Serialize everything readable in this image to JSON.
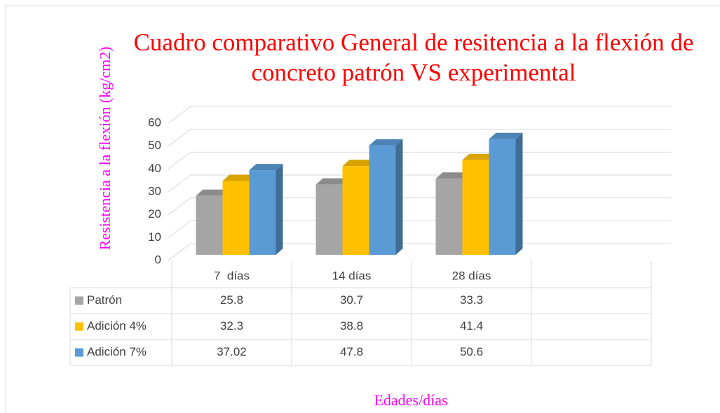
{
  "chart_data": {
    "type": "bar3d",
    "title": "Cuadro comparativo General de resitencia a la flexión de concreto patrón VS experimental",
    "y_axis_label": "Resistencia a la flexión (kg/cm2)",
    "x_axis_label": "Edades/días",
    "categories": [
      "7  días",
      "14 días",
      "28 días"
    ],
    "series": [
      {
        "name": "Patrón",
        "color": "#a5a5a5",
        "values": [
          25.8,
          30.7,
          33.3
        ]
      },
      {
        "name": "Adición 4%",
        "color": "#ffc000",
        "values": [
          32.3,
          38.8,
          41.4
        ]
      },
      {
        "name": "Adición 7%",
        "color": "#5b9bd5",
        "values": [
          37.02,
          47.8,
          50.6
        ]
      }
    ],
    "ylim": [
      0,
      60
    ],
    "yticks": [
      0,
      10,
      20,
      30,
      40,
      50,
      60
    ],
    "grid": true,
    "data_table": true
  }
}
